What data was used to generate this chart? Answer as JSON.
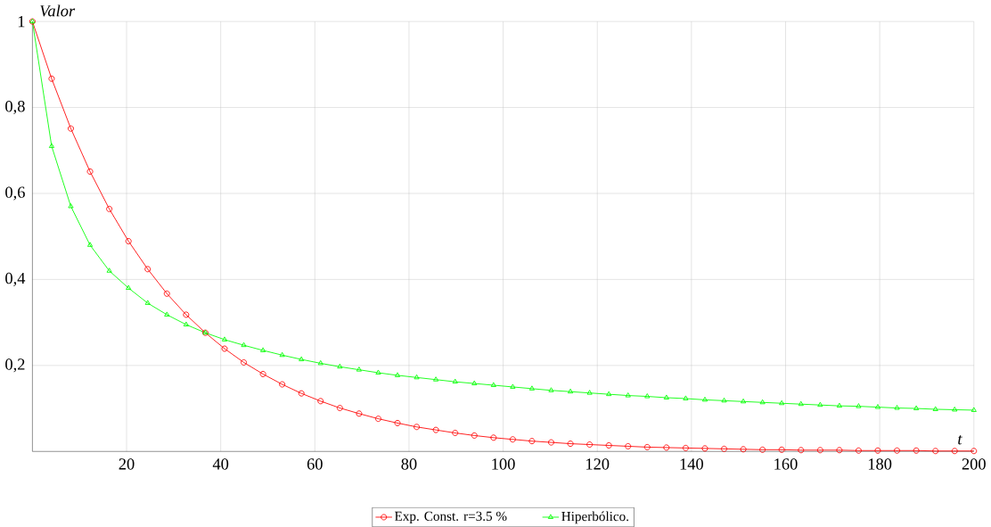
{
  "chart_data": {
    "type": "line",
    "xlabel": "t",
    "ylabel": "Valor",
    "x": [
      0,
      4.08,
      8.16,
      12.24,
      16.33,
      20.41,
      24.49,
      28.57,
      32.65,
      36.73,
      40.82,
      44.9,
      48.98,
      53.06,
      57.14,
      61.22,
      65.31,
      69.39,
      73.47,
      77.55,
      81.63,
      85.71,
      89.8,
      93.88,
      97.96,
      102.04,
      106.12,
      110.2,
      114.29,
      118.37,
      122.45,
      126.53,
      130.61,
      134.69,
      138.78,
      142.86,
      146.94,
      151.02,
      155.1,
      159.18,
      163.27,
      167.35,
      171.43,
      175.51,
      179.59,
      183.67,
      187.76,
      191.84,
      195.92,
      200
    ],
    "series": [
      {
        "name": "Exp. Const. r=3.5 %",
        "color": "#ff0000",
        "marker": "circle",
        "values": [
          1,
          0.867,
          0.751,
          0.651,
          0.564,
          0.489,
          0.424,
          0.367,
          0.318,
          0.276,
          0.239,
          0.207,
          0.18,
          0.156,
          0.135,
          0.117,
          0.101,
          0.088,
          0.076,
          0.066,
          0.057,
          0.05,
          0.043,
          0.037,
          0.032,
          0.028,
          0.024,
          0.021,
          0.018,
          0.016,
          0.014,
          0.012,
          0.01,
          0.009,
          0.008,
          0.007,
          0.006,
          0.005,
          0.004,
          0.004,
          0.003,
          0.003,
          0.003,
          0.002,
          0.002,
          0.002,
          0.002,
          0.001,
          0.001,
          0.001
        ]
      },
      {
        "name": "Hiperbólico.",
        "color": "#00ff00",
        "marker": "triangle",
        "values": [
          1,
          0.71,
          0.57,
          0.48,
          0.42,
          0.38,
          0.345,
          0.318,
          0.295,
          0.276,
          0.26,
          0.247,
          0.235,
          0.224,
          0.214,
          0.205,
          0.197,
          0.19,
          0.183,
          0.177,
          0.172,
          0.167,
          0.162,
          0.158,
          0.154,
          0.15,
          0.146,
          0.142,
          0.139,
          0.136,
          0.133,
          0.13,
          0.128,
          0.125,
          0.123,
          0.12,
          0.118,
          0.116,
          0.114,
          0.112,
          0.11,
          0.108,
          0.106,
          0.105,
          0.103,
          0.101,
          0.1,
          0.098,
          0.097,
          0.096
        ]
      }
    ],
    "xlim": [
      0,
      200
    ],
    "ylim": [
      0,
      1
    ],
    "xticks": [
      20,
      40,
      60,
      80,
      100,
      120,
      140,
      160,
      180,
      200
    ],
    "yticks": [
      {
        "value": 0.2,
        "label": "0,2"
      },
      {
        "value": 0.4,
        "label": "0,4"
      },
      {
        "value": 0.6,
        "label": "0,6"
      },
      {
        "value": 0.8,
        "label": "0,8"
      },
      1
    ],
    "grid": true,
    "legend": "bottom"
  }
}
